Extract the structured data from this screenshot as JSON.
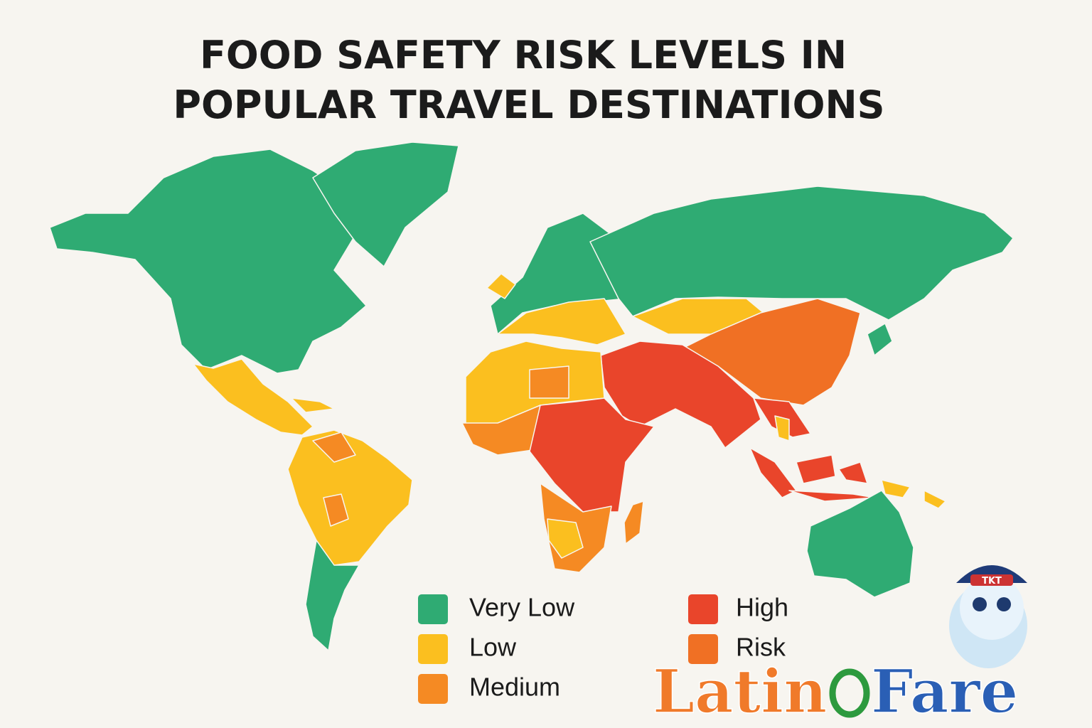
{
  "title": [
    "FOOD SAFETY RISK LEVELS IN",
    "POPULAR TRAVEL DESTINATIONS"
  ],
  "legend": [
    {
      "label": "Very Low",
      "color": "#2fab73"
    },
    {
      "label": "Low",
      "color": "#fbbf1f"
    },
    {
      "label": "Medium",
      "color": "#f58a23"
    },
    {
      "label": "High",
      "color": "#e9452b"
    },
    {
      "label": "Risk",
      "color": "#f07024"
    }
  ],
  "logo": {
    "first": "Latin",
    "second": "Fare"
  },
  "mascot": {
    "badge": "TKT"
  }
}
